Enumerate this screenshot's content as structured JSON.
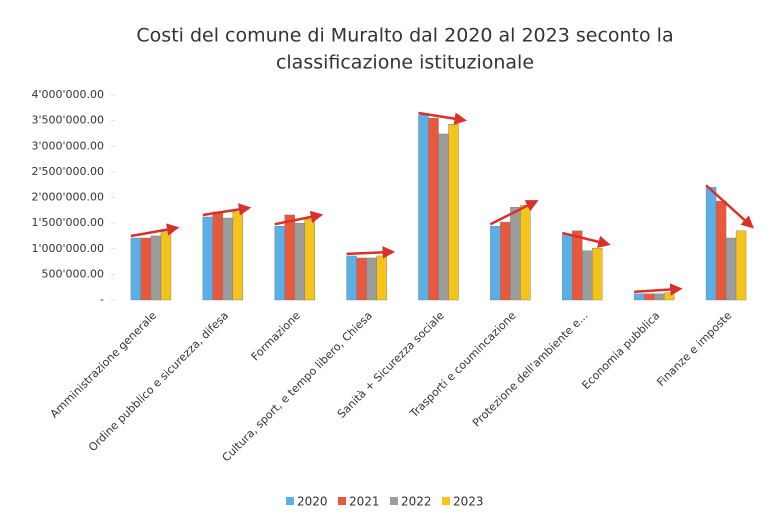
{
  "chart_data": {
    "type": "bar",
    "title": [
      "Costi del comune di Muralto dal 2020 al 2023 seconto la",
      "classificazione istituzionale"
    ],
    "categories": [
      "Amministrazione generale",
      "Ordine pubblico e sicurezza, difesa",
      "Formazione",
      "Cultura, sport, e tempo libero, Chiesa",
      "Sanità + Sicurezza sociale",
      "Trasporti e coumincazione",
      "Protezione dell'ambiente e...",
      "Economia pubblica",
      "Finanze e imposte"
    ],
    "series": [
      {
        "name": "2020",
        "color": "#5ab0e6",
        "values": [
          1210000,
          1620000,
          1440000,
          860000,
          3610000,
          1440000,
          1270000,
          120000,
          2200000
        ]
      },
      {
        "name": "2021",
        "color": "#e8583c",
        "values": [
          1210000,
          1720000,
          1660000,
          820000,
          3550000,
          1520000,
          1350000,
          120000,
          1930000
        ]
      },
      {
        "name": "2022",
        "color": "#9c9c9c",
        "values": [
          1250000,
          1600000,
          1500000,
          820000,
          3240000,
          1810000,
          960000,
          120000,
          1210000
        ]
      },
      {
        "name": "2023",
        "color": "#f4c41a",
        "values": [
          1330000,
          1720000,
          1580000,
          860000,
          3430000,
          1850000,
          1010000,
          140000,
          1350000
        ]
      }
    ],
    "ylim": [
      0,
      4000000
    ],
    "yticks": [
      {
        "value": 0,
        "label": "-"
      },
      {
        "value": 500000,
        "label": "500'000.00"
      },
      {
        "value": 1000000,
        "label": "1'000'000.00"
      },
      {
        "value": 1500000,
        "label": "1'500'000.00"
      },
      {
        "value": 2000000,
        "label": "2'000'000.00"
      },
      {
        "value": 2500000,
        "label": "2'500'000.00"
      },
      {
        "value": 3000000,
        "label": "3'000'000.00"
      },
      {
        "value": 3500000,
        "label": "3'500'000.00"
      },
      {
        "value": 4000000,
        "label": "4'000'000.00"
      }
    ],
    "grid": false,
    "legend": "bottom"
  }
}
